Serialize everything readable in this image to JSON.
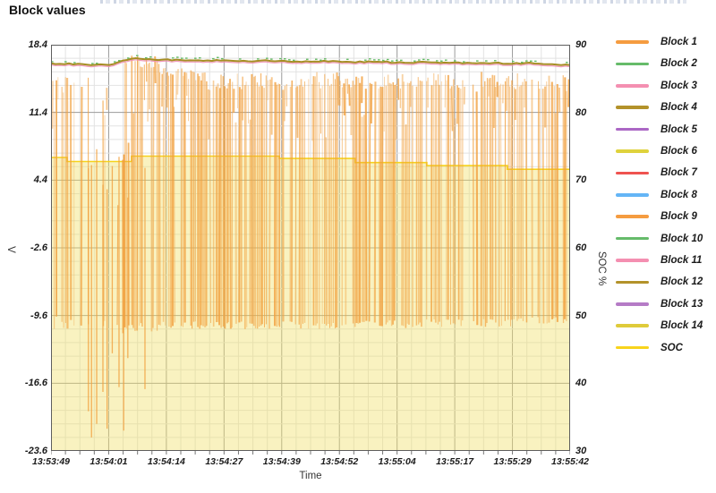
{
  "window": {
    "title": "Block values"
  },
  "axes": {
    "left": {
      "label": "V",
      "ticks": [
        "18.4",
        "11.4",
        "4.4",
        "-2.6",
        "-9.6",
        "-16.6",
        "-23.6"
      ]
    },
    "right": {
      "label": "SOC %",
      "ticks": [
        "90",
        "80",
        "70",
        "60",
        "50",
        "40",
        "30"
      ]
    },
    "x": {
      "label": "Time",
      "ticks": [
        "13:53:49",
        "13:54:01",
        "13:54:14",
        "13:54:27",
        "13:54:39",
        "13:54:52",
        "13:55:04",
        "13:55:17",
        "13:55:29",
        "13:55:42"
      ]
    }
  },
  "legend": [
    {
      "label": "Block 1",
      "color": "#F59C40"
    },
    {
      "label": "Block 2",
      "color": "#66BB6A"
    },
    {
      "label": "Block 3",
      "color": "#F48FB1"
    },
    {
      "label": "Block 4",
      "color": "#B3922A"
    },
    {
      "label": "Block 5",
      "color": "#AB67C5"
    },
    {
      "label": "Block 6",
      "color": "#DFD23C"
    },
    {
      "label": "Block 7",
      "color": "#EF5350"
    },
    {
      "label": "Block 8",
      "color": "#64B5F6"
    },
    {
      "label": "Block 9",
      "color": "#F59C40"
    },
    {
      "label": "Block 10",
      "color": "#66BB6A"
    },
    {
      "label": "Block 11",
      "color": "#F48FB1"
    },
    {
      "label": "Block 12",
      "color": "#B3922A"
    },
    {
      "label": "Block 13",
      "color": "#B57BC6"
    },
    {
      "label": "Block 14",
      "color": "#DFCB3A"
    },
    {
      "label": "SOC",
      "color": "#F8D41C"
    }
  ],
  "chart_data": {
    "type": "line",
    "title": "Block values",
    "xlabel": "Time",
    "ylabel_left": "V",
    "ylabel_right": "SOC %",
    "x_ticks": [
      "13:53:49",
      "13:54:01",
      "13:54:14",
      "13:54:27",
      "13:54:39",
      "13:54:52",
      "13:55:04",
      "13:55:17",
      "13:55:29",
      "13:55:42"
    ],
    "y_ticks_left": [
      18.4,
      11.4,
      4.4,
      -2.6,
      -9.6,
      -16.6,
      -23.6
    ],
    "y_ticks_right": [
      90,
      80,
      70,
      60,
      50,
      40,
      30
    ],
    "ylim_left": [
      -23.6,
      18.4
    ],
    "ylim_right": [
      30,
      90
    ],
    "grid": {
      "x_minor_per_major": 4,
      "y_minor_per_major": 5
    },
    "legend_position": "right",
    "soc_steps_pct": [
      [
        0,
        73.35
      ],
      [
        0.031,
        72.75
      ],
      [
        0.155,
        73.55
      ],
      [
        0.44,
        73.2
      ],
      [
        0.586,
        72.6
      ],
      [
        0.724,
        72.15
      ],
      [
        0.879,
        71.6
      ],
      [
        1,
        71.6
      ]
    ],
    "block_band_v": [
      [
        0,
        16.45
      ],
      [
        0.04,
        16.4
      ],
      [
        0.08,
        16.3
      ],
      [
        0.12,
        16.35
      ],
      [
        0.14,
        16.8
      ],
      [
        0.16,
        17.0
      ],
      [
        0.19,
        16.9
      ],
      [
        0.23,
        16.85
      ],
      [
        0.28,
        16.75
      ],
      [
        0.33,
        16.8
      ],
      [
        0.38,
        16.7
      ],
      [
        0.43,
        16.75
      ],
      [
        0.48,
        16.65
      ],
      [
        0.53,
        16.7
      ],
      [
        0.58,
        16.6
      ],
      [
        0.63,
        16.65
      ],
      [
        0.68,
        16.55
      ],
      [
        0.73,
        16.6
      ],
      [
        0.78,
        16.5
      ],
      [
        0.83,
        16.55
      ],
      [
        0.88,
        16.45
      ],
      [
        0.92,
        16.5
      ],
      [
        0.96,
        16.35
      ],
      [
        1,
        16.3
      ]
    ],
    "oscillation_segments": [
      [
        0.0,
        0.055,
        0.7,
        13.2,
        15.2,
        -9.6,
        -11.0
      ],
      [
        0.055,
        0.08,
        0.45,
        12.5,
        15.0,
        -9.8,
        -11.2
      ],
      [
        0.08,
        0.118,
        0.28,
        10.0,
        14.5,
        -9.5,
        -11.0
      ],
      [
        0.118,
        0.131,
        0.5,
        -1.0,
        4.0,
        -10.3,
        -11.2
      ],
      [
        0.131,
        0.142,
        0.6,
        4.0,
        11.0,
        -10.5,
        -11.5
      ],
      [
        0.142,
        0.21,
        0.95,
        16.0,
        17.3,
        -10.3,
        -11.3
      ],
      [
        0.21,
        0.3,
        0.92,
        14.2,
        16.0,
        -10.2,
        -11.0
      ],
      [
        0.3,
        0.318,
        0.3,
        13.5,
        15.0,
        -10.0,
        -10.8
      ],
      [
        0.318,
        0.44,
        0.92,
        13.8,
        15.5,
        -10.2,
        -11.0
      ],
      [
        0.44,
        0.468,
        0.55,
        13.5,
        15.0,
        -10.0,
        -10.8
      ],
      [
        0.468,
        0.6,
        0.92,
        13.8,
        15.6,
        -10.2,
        -11.0
      ],
      [
        0.6,
        0.628,
        0.45,
        13.5,
        15.0,
        -10.0,
        -10.7
      ],
      [
        0.628,
        0.716,
        0.9,
        13.8,
        15.5,
        -10.1,
        -10.9
      ],
      [
        0.716,
        0.738,
        0.4,
        13.5,
        15.0,
        -9.9,
        -10.6
      ],
      [
        0.738,
        0.8,
        0.9,
        13.8,
        15.5,
        -10.0,
        -10.8
      ],
      [
        0.8,
        0.826,
        0.35,
        13.5,
        15.2,
        -9.8,
        -10.6
      ],
      [
        0.826,
        0.92,
        0.88,
        13.8,
        15.6,
        -9.9,
        -10.8
      ],
      [
        0.92,
        0.938,
        0.5,
        13.5,
        15.0,
        -9.7,
        -10.5
      ],
      [
        0.938,
        1.0,
        0.88,
        13.6,
        15.4,
        -9.7,
        -10.6
      ]
    ],
    "deep_spikes": [
      [
        0.072,
        -19.5
      ],
      [
        0.078,
        -22.2
      ],
      [
        0.088,
        -20.8
      ],
      [
        0.1,
        -17.5
      ],
      [
        0.108,
        -21.3
      ],
      [
        0.118,
        -13.5
      ],
      [
        0.131,
        -17.0
      ],
      [
        0.14,
        -21.5
      ],
      [
        0.148,
        -14.0
      ],
      [
        0.181,
        -17.2
      ]
    ]
  },
  "colors": {
    "block_line": "#F19F3C",
    "band_olive": "#A68E24",
    "band_green": "#5DB75D",
    "band_pink": "#F08FB5",
    "soc_line": "#F6D31C",
    "soc_fill": "rgba(240,223,105,0.42)",
    "grid_minor": "#E2E2E2",
    "grid_major": "#9A9A9A",
    "plot_border": "#5E5E5E",
    "tick_color": "#777777"
  }
}
